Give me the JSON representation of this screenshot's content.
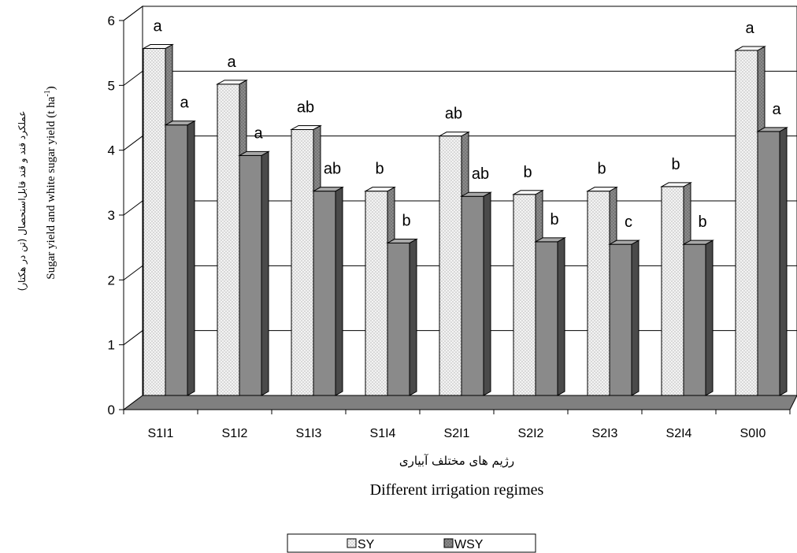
{
  "chart_data": {
    "type": "bar",
    "categories": [
      "S1I1",
      "S1I2",
      "S1I3",
      "S1I4",
      "S2I1",
      "S2I2",
      "S2I3",
      "S2I4",
      "S0I0"
    ],
    "series": [
      {
        "name": "SY",
        "values": [
          5.35,
          4.8,
          4.1,
          3.15,
          4.0,
          3.1,
          3.15,
          3.22,
          5.32
        ],
        "letters": [
          "a",
          "a",
          "ab",
          "b",
          "ab",
          "b",
          "b",
          "b",
          "a"
        ],
        "color": "#ececec"
      },
      {
        "name": "WSY",
        "values": [
          4.17,
          3.7,
          3.15,
          2.35,
          3.07,
          2.37,
          2.33,
          2.33,
          4.07
        ],
        "letters": [
          "a",
          "a",
          "ab",
          "b",
          "ab",
          "b",
          "c",
          "b",
          "a"
        ],
        "color": "#8c8c8c"
      }
    ],
    "ylim": [
      0,
      6
    ],
    "yticks": [
      "0",
      "1",
      "2",
      "3",
      "4",
      "5",
      "6"
    ],
    "ylabel": "Sugar yield and white sugar yield (t ha",
    "ylabel_sup": "-1",
    "ylabel_close": ")",
    "ylabel_fa": "عملکرد قند و قند قابل‌استحصال (تن در هکتار)",
    "xlabel": "Different irrigation regimes",
    "xlabel_fa": "رژیم های مختلف آبیاری",
    "grid": true,
    "legend_position": "bottom"
  }
}
